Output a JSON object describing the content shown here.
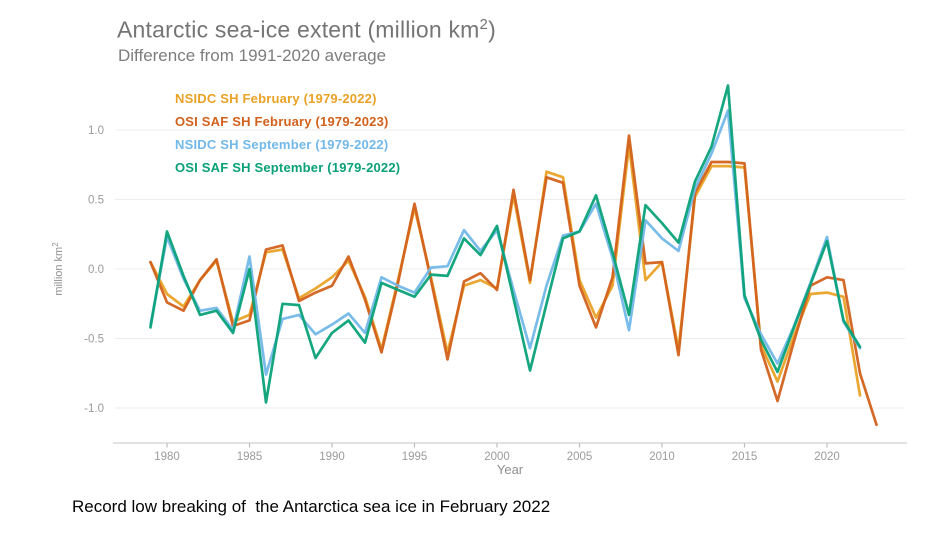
{
  "title": {
    "pre": "Antarctic sea-ice extent (million km",
    "sup": "2",
    "post": ")"
  },
  "subtitle": "Difference from 1991-2020 average",
  "caption": "Record low breaking of  the Antarctica sea ice in February 2022",
  "chart_data": {
    "type": "line",
    "title": "Antarctic sea-ice extent (million km2)",
    "subtitle": "Difference from 1991-2020 average",
    "xlabel": "Year",
    "ylabel_pre": "million km",
    "ylabel_sup": "2",
    "grid": true,
    "legend_position": "top-left-inside",
    "xlim": [
      1978,
      2024
    ],
    "ylim": [
      -1.25,
      1.4
    ],
    "xticks": [
      1980,
      1985,
      1990,
      1995,
      2000,
      2005,
      2010,
      2015,
      2020
    ],
    "yticks": [
      {
        "label": "1.0",
        "value": 1.0
      },
      {
        "label": "0.5",
        "value": 0.5
      },
      {
        "label": "0.0",
        "value": 0.0
      },
      {
        "label": "-0.5",
        "value": -0.5
      },
      {
        "label": "-1.0",
        "value": -1.0
      }
    ],
    "x": [
      1979,
      1980,
      1981,
      1982,
      1983,
      1984,
      1985,
      1986,
      1987,
      1988,
      1989,
      1990,
      1991,
      1992,
      1993,
      1994,
      1995,
      1996,
      1997,
      1998,
      1999,
      2000,
      2001,
      2002,
      2003,
      2004,
      2005,
      2006,
      2007,
      2008,
      2009,
      2010,
      2011,
      2012,
      2013,
      2014,
      2015,
      2016,
      2017,
      2018,
      2019,
      2020,
      2021,
      2022,
      2023
    ],
    "series": [
      {
        "name": "NSIDC SH February",
        "legend": "NSIDC SH February (1979-2022)",
        "color": "#e9a226",
        "values": [
          0.05,
          -0.18,
          -0.27,
          -0.08,
          0.06,
          -0.38,
          -0.33,
          0.12,
          0.14,
          -0.21,
          -0.14,
          -0.06,
          0.06,
          -0.2,
          -0.58,
          -0.08,
          0.44,
          -0.06,
          -0.6,
          -0.12,
          -0.08,
          -0.14,
          0.53,
          -0.1,
          0.7,
          0.66,
          -0.08,
          -0.35,
          -0.12,
          0.89,
          -0.08,
          0.05,
          -0.58,
          0.52,
          0.74,
          0.74,
          0.73,
          -0.55,
          -0.81,
          -0.48,
          -0.18,
          -0.17,
          -0.2,
          -0.91,
          null
        ]
      },
      {
        "name": "OSI SAF SH February",
        "legend": "OSI SAF SH February (1979-2023)",
        "color": "#d2611c",
        "values": [
          0.05,
          -0.24,
          -0.3,
          -0.08,
          0.07,
          -0.41,
          -0.37,
          0.14,
          0.17,
          -0.23,
          -0.17,
          -0.12,
          0.09,
          -0.22,
          -0.6,
          -0.1,
          0.47,
          -0.08,
          -0.65,
          -0.09,
          -0.03,
          -0.15,
          0.57,
          -0.08,
          0.66,
          0.62,
          -0.12,
          -0.42,
          -0.06,
          0.96,
          0.04,
          0.05,
          -0.62,
          0.55,
          0.77,
          0.77,
          0.76,
          -0.58,
          -0.95,
          -0.52,
          -0.12,
          -0.06,
          -0.08,
          -0.75,
          -1.12
        ]
      },
      {
        "name": "NSIDC SH September",
        "legend": "NSIDC SH September (1979-2022)",
        "color": "#72b8e8",
        "values": [
          -0.4,
          0.23,
          -0.07,
          -0.3,
          -0.28,
          -0.44,
          0.09,
          -0.76,
          -0.36,
          -0.33,
          -0.47,
          -0.4,
          -0.32,
          -0.46,
          -0.06,
          -0.12,
          -0.17,
          0.01,
          0.02,
          0.28,
          0.13,
          0.28,
          -0.15,
          -0.57,
          -0.12,
          0.24,
          0.27,
          0.47,
          0.08,
          -0.44,
          0.35,
          0.22,
          0.13,
          0.58,
          0.83,
          1.14,
          -0.21,
          -0.47,
          -0.68,
          -0.41,
          -0.1,
          0.23,
          -0.38,
          -0.57,
          null
        ]
      },
      {
        "name": "OSI SAF SH September",
        "legend": "OSI SAF SH September (1979-2022)",
        "color": "#0aa179",
        "values": [
          -0.42,
          0.27,
          -0.05,
          -0.33,
          -0.3,
          -0.46,
          0.0,
          -0.96,
          -0.25,
          -0.26,
          -0.64,
          -0.46,
          -0.37,
          -0.53,
          -0.1,
          -0.15,
          -0.2,
          -0.04,
          -0.05,
          0.22,
          0.1,
          0.31,
          -0.21,
          -0.73,
          -0.25,
          0.22,
          0.27,
          0.53,
          0.12,
          -0.33,
          0.46,
          0.33,
          0.19,
          0.63,
          0.88,
          1.32,
          -0.19,
          -0.51,
          -0.74,
          -0.42,
          -0.11,
          0.2,
          -0.37,
          -0.56,
          null
        ]
      }
    ]
  }
}
